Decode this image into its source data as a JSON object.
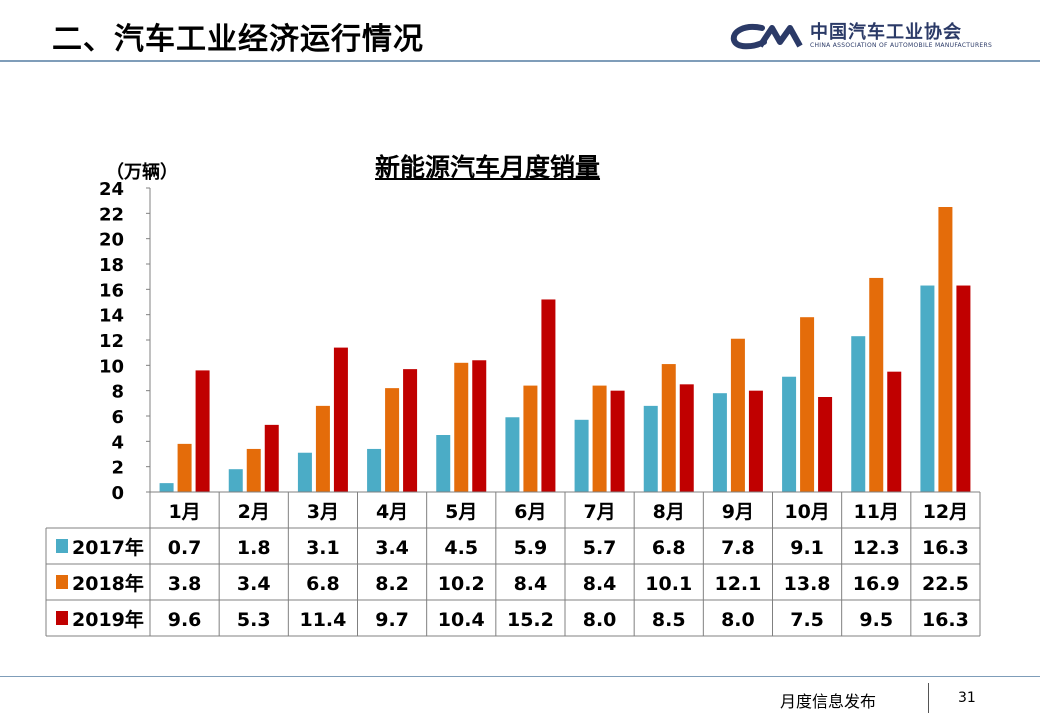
{
  "slide": {
    "title": "二、汽车工业经济运行情况",
    "logo_cn": "中国汽车工业协会",
    "logo_en": "CHINA ASSOCIATION OF AUTOMOBILE MANUFACTURERS",
    "logo_mark": "CAM",
    "footer_text": "月度信息发布",
    "page_number": "31"
  },
  "chart_data": {
    "type": "bar",
    "title": "新能源汽车月度销量",
    "ylabel": "（万辆）",
    "xlabel": "",
    "ylim": [
      0,
      24
    ],
    "yticks": [
      0,
      2,
      4,
      6,
      8,
      10,
      12,
      14,
      16,
      18,
      20,
      22,
      24
    ],
    "categories": [
      "1月",
      "2月",
      "3月",
      "4月",
      "5月",
      "6月",
      "7月",
      "8月",
      "9月",
      "10月",
      "11月",
      "12月"
    ],
    "series": [
      {
        "name": "2017年",
        "color": "#4bacc6",
        "values": [
          0.7,
          1.8,
          3.1,
          3.4,
          4.5,
          5.9,
          5.7,
          6.8,
          7.8,
          9.1,
          12.3,
          16.3
        ],
        "labels": [
          "0.7",
          "1.8",
          "3.1",
          "3.4",
          "4.5",
          "5.9",
          "5.7",
          "6.8",
          "7.8",
          "9.1",
          "12.3",
          "16.3"
        ]
      },
      {
        "name": "2018年",
        "color": "#e46c0a",
        "values": [
          3.8,
          3.4,
          6.8,
          8.2,
          10.2,
          8.4,
          8.4,
          10.1,
          12.1,
          13.8,
          16.9,
          22.5
        ],
        "labels": [
          "3.8",
          "3.4",
          "6.8",
          "8.2",
          "10.2",
          "8.4",
          "8.4",
          "10.1",
          "12.1",
          "13.8",
          "16.9",
          "22.5"
        ]
      },
      {
        "name": "2019年",
        "color": "#c00000",
        "values": [
          9.6,
          5.3,
          11.4,
          9.7,
          10.4,
          15.2,
          8.0,
          8.5,
          8.0,
          7.5,
          9.5,
          16.3
        ],
        "labels": [
          "9.6",
          "5.3",
          "11.4",
          "9.7",
          "10.4",
          "15.2",
          "8.0",
          "8.5",
          "8.0",
          "7.5",
          "9.5",
          "16.3"
        ]
      }
    ],
    "grid": false,
    "legend": "data-table-left"
  }
}
